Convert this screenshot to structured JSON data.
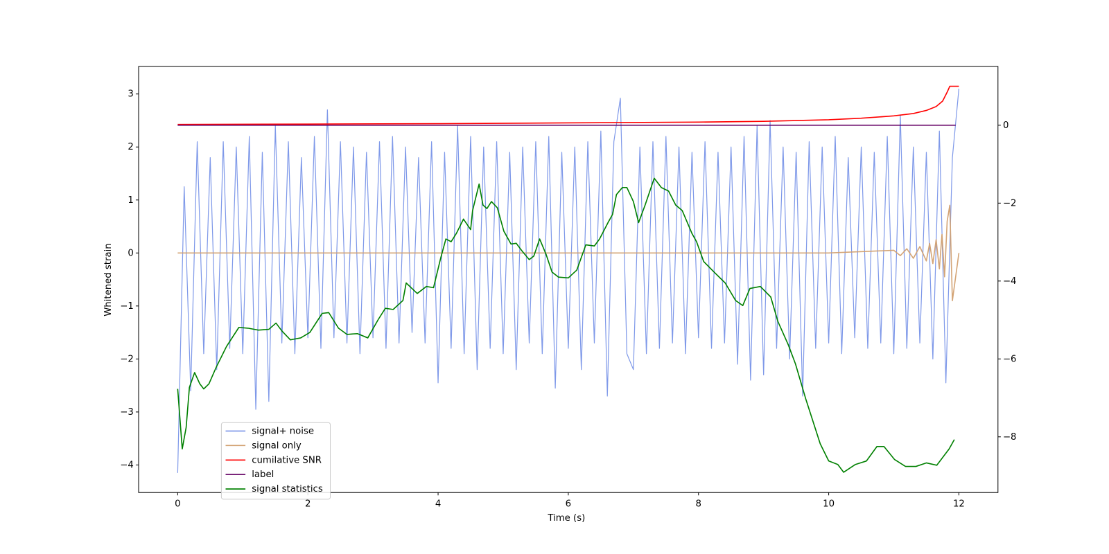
{
  "chart_data": {
    "type": "line",
    "xlabel": "Time (s)",
    "ylabel": "Whitened strain",
    "xlim": [
      -0.6,
      12.6
    ],
    "xticks": [
      0,
      2,
      4,
      6,
      8,
      10,
      12
    ],
    "ylim": [
      -4.52,
      3.52
    ],
    "yticks": [
      {
        "value": -4,
        "label": "−4"
      },
      {
        "value": -3,
        "label": "−3"
      },
      {
        "value": -2,
        "label": "−2"
      },
      {
        "value": -1,
        "label": "−1"
      },
      0,
      1,
      2,
      3
    ],
    "y2lim": [
      -9.43,
      1.51
    ],
    "y2ticks": [
      {
        "value": -8,
        "label": "−8"
      },
      {
        "value": -6,
        "label": "−6"
      },
      {
        "value": -4,
        "label": "−4"
      },
      {
        "value": -2,
        "label": "−2"
      },
      0
    ],
    "legend": "lower left",
    "series": [
      {
        "name": "signal+ noise",
        "color": "#7893e8",
        "axis": "y",
        "x": [
          0,
          0.1,
          0.2,
          0.3,
          0.4,
          0.5,
          0.6,
          0.7,
          0.8,
          0.9,
          1,
          1.1,
          1.2,
          1.3,
          1.4,
          1.5,
          1.6,
          1.7,
          1.8,
          1.9,
          2,
          2.1,
          2.2,
          2.3,
          2.4,
          2.5,
          2.6,
          2.7,
          2.8,
          2.9,
          3,
          3.1,
          3.2,
          3.3,
          3.4,
          3.5,
          3.6,
          3.7,
          3.8,
          3.9,
          4,
          4.1,
          4.2,
          4.3,
          4.4,
          4.5,
          4.6,
          4.7,
          4.8,
          4.9,
          5,
          5.1,
          5.2,
          5.3,
          5.4,
          5.5,
          5.6,
          5.7,
          5.8,
          5.9,
          6,
          6.1,
          6.2,
          6.3,
          6.4,
          6.5,
          6.6,
          6.7,
          6.8,
          6.9,
          7,
          7.1,
          7.2,
          7.3,
          7.4,
          7.5,
          7.6,
          7.7,
          7.8,
          7.9,
          8,
          8.1,
          8.2,
          8.3,
          8.4,
          8.5,
          8.6,
          8.7,
          8.8,
          8.9,
          9,
          9.1,
          9.2,
          9.3,
          9.4,
          9.5,
          9.6,
          9.7,
          9.8,
          9.9,
          10,
          10.1,
          10.2,
          10.3,
          10.4,
          10.5,
          10.6,
          10.7,
          10.8,
          10.9,
          11,
          11.1,
          11.2,
          11.3,
          11.4,
          11.5,
          11.6,
          11.7,
          11.8,
          11.9,
          12
        ],
        "values": [
          -4.15,
          1.25,
          -2.6,
          2.1,
          -1.9,
          1.8,
          -2.2,
          2.1,
          -1.8,
          2.0,
          -1.9,
          2.2,
          -2.95,
          1.9,
          -2.8,
          2.4,
          -1.7,
          2.1,
          -1.9,
          1.8,
          -1.6,
          2.2,
          -1.8,
          2.7,
          -1.6,
          2.1,
          -1.7,
          2.0,
          -1.9,
          1.9,
          -1.6,
          2.1,
          -1.8,
          2.2,
          -1.7,
          2.0,
          -1.5,
          1.8,
          -1.7,
          2.1,
          -2.45,
          1.9,
          -1.8,
          2.4,
          -1.9,
          2.2,
          -2.2,
          2.0,
          -1.8,
          2.1,
          -1.9,
          1.9,
          -2.2,
          2.0,
          -1.7,
          2.1,
          -1.9,
          2.2,
          -2.55,
          1.9,
          -1.8,
          2.0,
          -2.2,
          2.1,
          -1.7,
          2.3,
          -2.7,
          2.1,
          2.92,
          -1.9,
          -2.2,
          2.0,
          -1.9,
          2.1,
          -1.8,
          2.2,
          -1.7,
          2.0,
          -1.9,
          1.9,
          -1.6,
          2.1,
          -1.8,
          1.9,
          -1.7,
          2.0,
          -2.1,
          2.2,
          -2.4,
          2.4,
          -2.3,
          2.5,
          -1.8,
          2.0,
          -2.0,
          1.9,
          -2.7,
          2.1,
          -1.8,
          2.0,
          -1.7,
          2.2,
          -1.9,
          1.8,
          -1.6,
          2.0,
          -1.8,
          1.9,
          -1.7,
          2.2,
          -1.9,
          2.6,
          -1.8,
          2.0,
          -1.7,
          1.9,
          -2.0,
          2.3,
          -2.45,
          1.8,
          3.1
        ]
      },
      {
        "name": "signal only",
        "color": "#d2a070",
        "axis": "y",
        "x": [
          0,
          2,
          4,
          6,
          8,
          10,
          11.0,
          11.1,
          11.2,
          11.3,
          11.4,
          11.5,
          11.55,
          11.6,
          11.65,
          11.7,
          11.74,
          11.78,
          11.82,
          11.86,
          11.9,
          12
        ],
        "values": [
          0,
          0,
          0,
          0,
          0,
          0,
          0.05,
          -0.05,
          0.08,
          -0.1,
          0.12,
          -0.15,
          0.18,
          -0.2,
          0.25,
          -0.3,
          0.35,
          -0.45,
          0.6,
          0.9,
          -0.9,
          0
        ]
      },
      {
        "name": "cumilative SNR",
        "color": "#ff0000",
        "axis": "y2",
        "x": [
          0,
          2,
          4,
          6,
          8,
          9,
          10,
          10.5,
          11,
          11.3,
          11.5,
          11.65,
          11.75,
          11.82,
          11.86,
          12
        ],
        "values": [
          0.02,
          0.03,
          0.04,
          0.06,
          0.08,
          0.1,
          0.14,
          0.18,
          0.24,
          0.3,
          0.38,
          0.48,
          0.62,
          0.85,
          1.0,
          1.0
        ]
      },
      {
        "name": "label",
        "color": "#6a0a6a",
        "axis": "y2",
        "x": [
          0,
          11.95
        ],
        "values": [
          0,
          0
        ]
      },
      {
        "name": "signal statistics",
        "color": "#008000",
        "axis": "y2",
        "x": [
          0,
          0.07,
          0.13,
          0.18,
          0.26,
          0.34,
          0.4,
          0.48,
          0.59,
          0.75,
          0.94,
          1.08,
          1.24,
          1.4,
          1.51,
          1.6,
          1.73,
          1.89,
          2.03,
          2.22,
          2.32,
          2.47,
          2.6,
          2.76,
          2.92,
          3.08,
          3.19,
          3.31,
          3.46,
          3.51,
          3.68,
          3.82,
          3.93,
          4.04,
          4.12,
          4.2,
          4.28,
          4.39,
          4.5,
          4.53,
          4.63,
          4.69,
          4.75,
          4.82,
          4.91,
          5.01,
          5.12,
          5.2,
          5.29,
          5.4,
          5.47,
          5.56,
          5.66,
          5.75,
          5.85,
          6.0,
          6.13,
          6.27,
          6.4,
          6.48,
          6.61,
          6.68,
          6.74,
          6.83,
          6.9,
          7.0,
          7.08,
          7.18,
          7.32,
          7.43,
          7.54,
          7.65,
          7.75,
          7.9,
          7.97,
          8.08,
          8.24,
          8.41,
          8.57,
          8.68,
          8.79,
          8.95,
          9.11,
          9.22,
          9.38,
          9.49,
          9.65,
          9.87,
          10.0,
          10.14,
          10.23,
          10.41,
          10.58,
          10.74,
          10.85,
          11.01,
          11.18,
          11.34,
          11.5,
          11.66,
          11.85,
          11.93
        ],
        "values": [
          -6.77,
          -8.31,
          -7.76,
          -6.73,
          -6.35,
          -6.64,
          -6.77,
          -6.64,
          -6.22,
          -5.68,
          -5.19,
          -5.21,
          -5.26,
          -5.24,
          -5.08,
          -5.28,
          -5.51,
          -5.46,
          -5.32,
          -4.83,
          -4.81,
          -5.21,
          -5.37,
          -5.35,
          -5.46,
          -4.99,
          -4.7,
          -4.73,
          -4.5,
          -4.05,
          -4.32,
          -4.14,
          -4.17,
          -3.41,
          -2.92,
          -2.99,
          -2.78,
          -2.41,
          -2.68,
          -2.19,
          -1.51,
          -2.05,
          -2.14,
          -1.96,
          -2.12,
          -2.72,
          -3.05,
          -3.03,
          -3.23,
          -3.45,
          -3.36,
          -2.92,
          -3.32,
          -3.77,
          -3.9,
          -3.92,
          -3.72,
          -3.07,
          -3.1,
          -2.92,
          -2.5,
          -2.29,
          -1.78,
          -1.6,
          -1.6,
          -1.96,
          -2.5,
          -2.05,
          -1.36,
          -1.6,
          -1.69,
          -2.05,
          -2.19,
          -2.78,
          -2.99,
          -3.5,
          -3.77,
          -4.05,
          -4.5,
          -4.63,
          -4.19,
          -4.14,
          -4.41,
          -5.04,
          -5.64,
          -6.13,
          -7.04,
          -8.18,
          -8.62,
          -8.71,
          -8.91,
          -8.71,
          -8.62,
          -8.25,
          -8.25,
          -8.58,
          -8.76,
          -8.76,
          -8.67,
          -8.73,
          -8.31,
          -8.07
        ]
      }
    ]
  }
}
